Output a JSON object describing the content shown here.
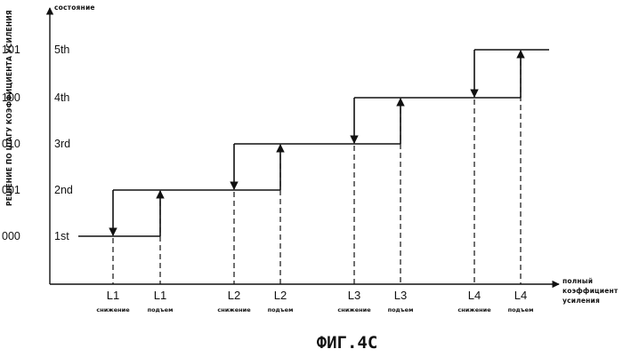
{
  "y_axis": {
    "caption": "состояние",
    "side_caption": "РЕШЕНИЕ ПО ШАГУ КОЭФФИЦИЕНТА УСИЛЕНИЯ",
    "levels": [
      {
        "code": "000",
        "state": "1st"
      },
      {
        "code": "001",
        "state": "2nd"
      },
      {
        "code": "010",
        "state": "3rd"
      },
      {
        "code": "100",
        "state": "4th"
      },
      {
        "code": "101",
        "state": "5th"
      }
    ]
  },
  "x_axis": {
    "caption_lines": [
      "полный",
      "коэффициент",
      "усиления"
    ],
    "thresholds": [
      {
        "label": "L1",
        "sub": "снижение",
        "kind": "down"
      },
      {
        "label": "L1",
        "sub": "подъем",
        "kind": "up"
      },
      {
        "label": "L2",
        "sub": "снижение",
        "kind": "down"
      },
      {
        "label": "L2",
        "sub": "подъем",
        "kind": "up"
      },
      {
        "label": "L3",
        "sub": "снижение",
        "kind": "down"
      },
      {
        "label": "L3",
        "sub": "подъем",
        "kind": "up"
      },
      {
        "label": "L4",
        "sub": "снижение",
        "kind": "down"
      },
      {
        "label": "L4",
        "sub": "подъем",
        "kind": "up"
      }
    ]
  },
  "figure_caption": "ФИГ.4С"
}
